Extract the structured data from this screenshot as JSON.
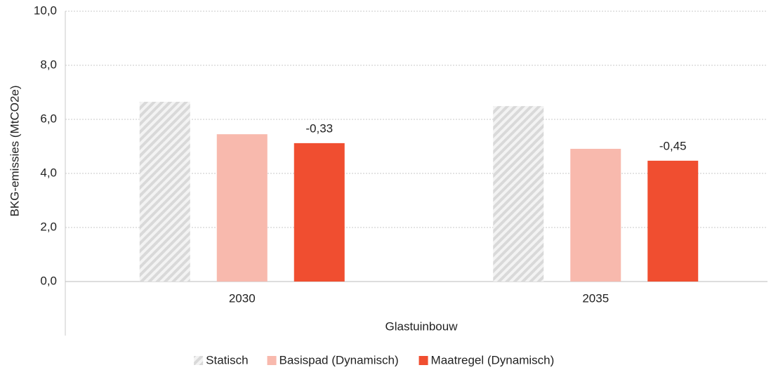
{
  "chart_data": {
    "type": "bar",
    "y_label": "BKG-emissies  (MtCO2e)",
    "x_label": "Glastuinbouw",
    "categories": [
      "2030",
      "2035"
    ],
    "series": [
      {
        "name": "Statisch",
        "color": "#d9d9d9",
        "pattern": "hatch",
        "values": [
          6.65,
          6.49
        ]
      },
      {
        "name": "Basispad (Dynamisch)",
        "color": "#f8b9ad",
        "values": [
          5.45,
          4.91
        ]
      },
      {
        "name": "Maatregel (Dynamisch)",
        "color": "#f04e30",
        "values": [
          5.12,
          4.47
        ]
      }
    ],
    "annotations": [
      "-0,33",
      "-0,45"
    ],
    "ylim": [
      0,
      10
    ],
    "yticks": [
      {
        "value": 0,
        "label": "0,0"
      },
      {
        "value": 2,
        "label": "2,0"
      },
      {
        "value": 4,
        "label": "4,0"
      },
      {
        "value": 6,
        "label": "6,0"
      },
      {
        "value": 8,
        "label": "8,0"
      },
      {
        "value": 10,
        "label": "10,0"
      }
    ],
    "grid": true,
    "legend": "bottom"
  }
}
